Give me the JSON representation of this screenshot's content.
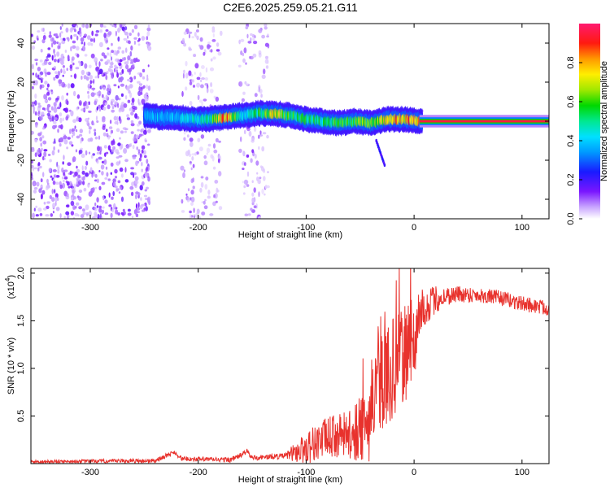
{
  "title": "C2E6.2025.259.05.21.G11",
  "chart_data": [
    {
      "id": "spectrogram",
      "type": "heatmap",
      "xlabel": "Height of straight line (km)",
      "ylabel": "Frequency (Hz)",
      "xlim": [
        -355,
        125
      ],
      "ylim": [
        -50,
        50
      ],
      "xticks": [
        -300,
        -200,
        -100,
        0,
        100
      ],
      "yticks": [
        -40,
        -20,
        0,
        20,
        40
      ],
      "xtick_labels": [
        "-300",
        "-200",
        "-100",
        "0",
        "100"
      ],
      "ytick_labels": [
        "-40",
        "-20",
        "0",
        "20",
        "40"
      ],
      "colorbar": {
        "label": "Normalized spectral amplitude",
        "range": [
          0,
          1
        ],
        "ticks": [
          0.0,
          0.2,
          0.4,
          0.6,
          0.8
        ],
        "tick_labels": [
          "0.0",
          "0.2",
          "0.4",
          "0.6",
          "0.8"
        ]
      },
      "noise_regions_km": [
        [
          -355,
          -245
        ],
        [
          -215,
          -178
        ],
        [
          -162,
          -135
        ]
      ],
      "signal_track": [
        {
          "x": -250,
          "y": 3,
          "amp": 0.35
        },
        {
          "x": -235,
          "y": 2,
          "amp": 0.4
        },
        {
          "x": -220,
          "y": 2,
          "amp": 0.4
        },
        {
          "x": -205,
          "y": 1,
          "amp": 0.45
        },
        {
          "x": -190,
          "y": 1,
          "amp": 0.5
        },
        {
          "x": -175,
          "y": 2,
          "amp": 0.9
        },
        {
          "x": -160,
          "y": 3,
          "amp": 0.45
        },
        {
          "x": -145,
          "y": 4,
          "amp": 0.55
        },
        {
          "x": -130,
          "y": 4,
          "amp": 0.75
        },
        {
          "x": -115,
          "y": 3,
          "amp": 0.6
        },
        {
          "x": -100,
          "y": 1,
          "amp": 0.55
        },
        {
          "x": -85,
          "y": 0,
          "amp": 0.55
        },
        {
          "x": -70,
          "y": -1,
          "amp": 0.6
        },
        {
          "x": -55,
          "y": 0,
          "amp": 0.6
        },
        {
          "x": -40,
          "y": -1,
          "amp": 0.65
        },
        {
          "x": -25,
          "y": 1,
          "amp": 0.8
        },
        {
          "x": -10,
          "y": 1,
          "amp": 0.85
        },
        {
          "x": 5,
          "y": 0,
          "amp": 0.9
        },
        {
          "x": 30,
          "y": 0,
          "amp": 0.95
        },
        {
          "x": 60,
          "y": 0,
          "amp": 0.95
        },
        {
          "x": 90,
          "y": 0,
          "amp": 0.95
        },
        {
          "x": 125,
          "y": 0,
          "amp": 0.95
        }
      ],
      "branch": {
        "x": [
          -35,
          -27
        ],
        "y": [
          -10,
          -23
        ]
      },
      "steady_line_km": [
        5,
        125
      ]
    },
    {
      "id": "snr",
      "type": "line",
      "xlabel": "Height of straight line (km)",
      "ylabel": "SNR (10 * v/v)",
      "scale_label_main": "(x10",
      "scale_label_exp": "4",
      "scale_label_end": ")",
      "xlim": [
        -355,
        125
      ],
      "ylim": [
        0,
        2.05
      ],
      "xticks": [
        -300,
        -200,
        -100,
        0,
        100
      ],
      "yticks": [
        0.5,
        1.0,
        1.5,
        2.0
      ],
      "xtick_labels": [
        "-300",
        "-200",
        "-100",
        "0",
        "100"
      ],
      "ytick_labels": [
        "0.5",
        "1.0",
        "1.5",
        "2.0"
      ],
      "series": [
        {
          "name": "SNR",
          "color": "#e8322d",
          "envelope_x": [
            -355,
            -240,
            -230,
            -222,
            -215,
            -170,
            -160,
            -155,
            -150,
            -120,
            -105,
            -95,
            -80,
            -60,
            -50,
            -45,
            -40,
            -30,
            -20,
            -10,
            -5,
            0,
            5,
            10,
            20,
            30,
            40,
            60,
            80,
            100,
            125
          ],
          "envelope_y": [
            0.02,
            0.03,
            0.08,
            0.12,
            0.05,
            0.04,
            0.09,
            0.13,
            0.06,
            0.08,
            0.14,
            0.2,
            0.28,
            0.3,
            0.35,
            0.28,
            0.55,
            0.85,
            1.0,
            1.1,
            1.25,
            1.3,
            1.5,
            1.65,
            1.72,
            1.76,
            1.78,
            1.77,
            1.74,
            1.68,
            1.63
          ],
          "noise_amp_x": [
            -355,
            -120,
            -100,
            -60,
            -40,
            -20,
            -5,
            10,
            30,
            60,
            125
          ],
          "noise_amp_y": [
            0.015,
            0.03,
            0.18,
            0.25,
            0.45,
            0.55,
            0.5,
            0.2,
            0.1,
            0.08,
            0.08
          ]
        }
      ]
    }
  ]
}
